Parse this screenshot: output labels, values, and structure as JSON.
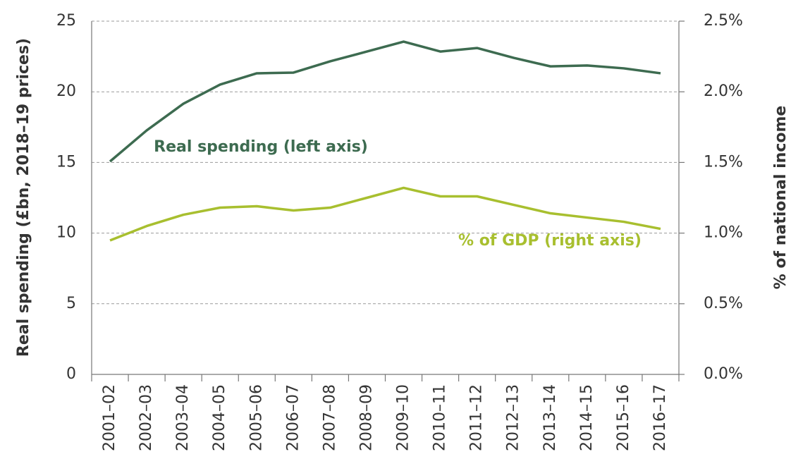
{
  "chart_data": {
    "type": "line",
    "categories": [
      "2001–02",
      "2002–03",
      "2003–04",
      "2004–05",
      "2005–06",
      "2006–07",
      "2007–08",
      "2008–09",
      "2009–10",
      "2010–11",
      "2011–12",
      "2012–13",
      "2013–14",
      "2014–15",
      "2015–16",
      "2016–17"
    ],
    "series": [
      {
        "name": "Real spending (left axis)",
        "color": "#3d6b50",
        "axis": "y",
        "values": [
          15.07,
          17.27,
          19.16,
          20.51,
          21.31,
          21.36,
          22.16,
          22.85,
          23.55,
          22.85,
          23.1,
          22.4,
          21.8,
          21.86,
          21.66,
          21.31
        ]
      },
      {
        "name": "% of GDP (right axis)",
        "color": "#a8bf2f",
        "axis": "y2",
        "values": [
          0.948,
          1.05,
          1.13,
          1.18,
          1.19,
          1.16,
          1.18,
          1.25,
          1.32,
          1.26,
          1.26,
          1.2,
          1.14,
          1.11,
          1.08,
          1.03
        ]
      }
    ],
    "ylabel": "Real spending (£bn, 2018–19 prices)",
    "y2label": "% of national income",
    "ylim": [
      0,
      25
    ],
    "yticks": [
      0,
      5,
      10,
      15,
      20,
      25
    ],
    "y2lim": [
      0,
      2.5
    ],
    "y2ticks": [
      {
        "value": 0,
        "label": "0.0%"
      },
      {
        "value": 0.5,
        "label": "0.5%"
      },
      {
        "value": 1,
        "label": "1.0%"
      },
      {
        "value": 1.5,
        "label": "1.5%"
      },
      {
        "value": 2,
        "label": "2.0%"
      },
      {
        "value": 2.5,
        "label": "2.5%"
      }
    ],
    "grid": true
  }
}
